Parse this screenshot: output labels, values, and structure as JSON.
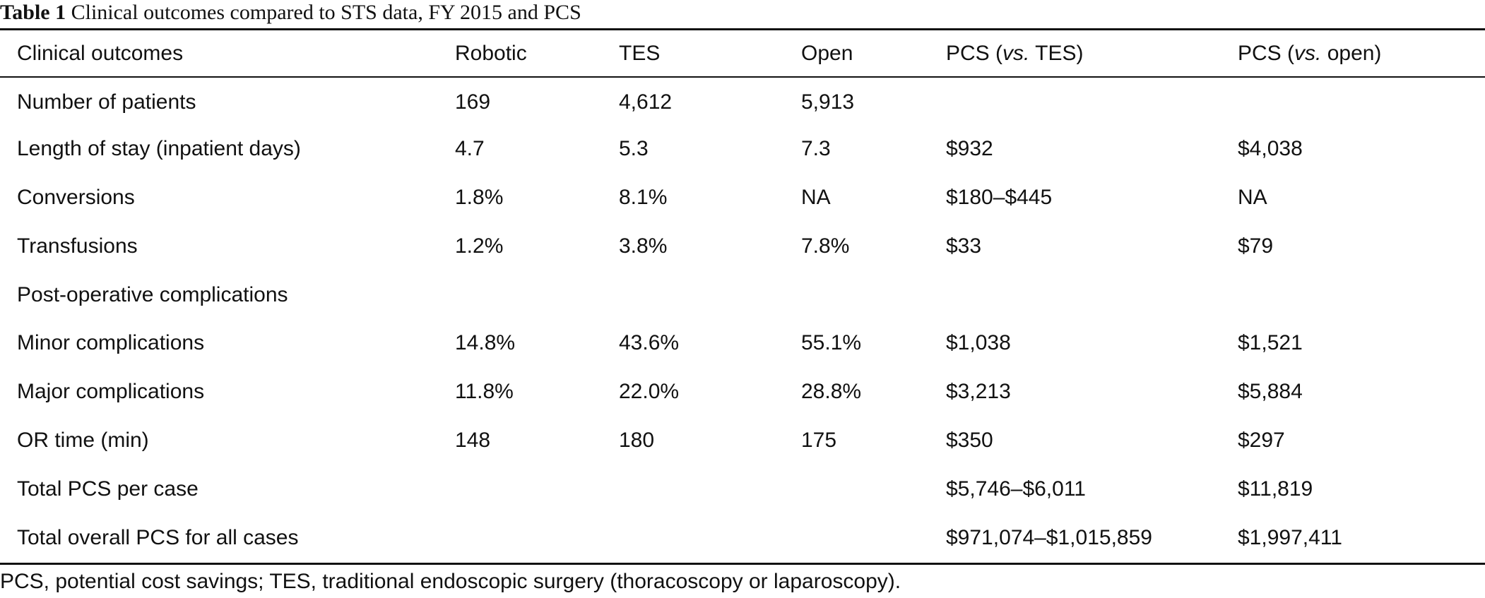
{
  "caption": {
    "label": "Table 1",
    "text": "Clinical outcomes compared to STS data, FY 2015 and PCS"
  },
  "table": {
    "headers": {
      "outcome": "Clinical outcomes",
      "robotic": "Robotic",
      "tes": "TES",
      "open": "Open",
      "pcs_tes_prefix": "PCS (",
      "pcs_tes_vs": "vs.",
      "pcs_tes_suffix": " TES)",
      "pcs_open_prefix": "PCS (",
      "pcs_open_vs": "vs.",
      "pcs_open_suffix": " open)"
    },
    "rows": [
      [
        "Number of patients",
        "169",
        "4,612",
        "5,913",
        "",
        ""
      ],
      [
        "Length of stay (inpatient days)",
        "4.7",
        "5.3",
        "7.3",
        "$932",
        "$4,038"
      ],
      [
        "Conversions",
        "1.8%",
        "8.1%",
        "NA",
        "$180–$445",
        "NA"
      ],
      [
        "Transfusions",
        "1.2%",
        "3.8%",
        "7.8%",
        "$33",
        "$79"
      ],
      [
        "Post-operative complications",
        "",
        "",
        "",
        "",
        ""
      ],
      [
        "Minor complications",
        "14.8%",
        "43.6%",
        "55.1%",
        "$1,038",
        "$1,521"
      ],
      [
        "Major complications",
        "11.8%",
        "22.0%",
        "28.8%",
        "$3,213",
        "$5,884"
      ],
      [
        "OR time (min)",
        "148",
        "180",
        "175",
        "$350",
        "$297"
      ],
      [
        "Total PCS per case",
        "",
        "",
        "",
        "$5,746–$6,011",
        "$11,819"
      ],
      [
        "Total overall PCS for all cases",
        "",
        "",
        "",
        "$971,074–$1,015,859",
        "$1,997,411"
      ]
    ]
  },
  "footnote": "PCS, potential cost savings; TES, traditional endoscopic surgery (thoracoscopy or laparoscopy)."
}
